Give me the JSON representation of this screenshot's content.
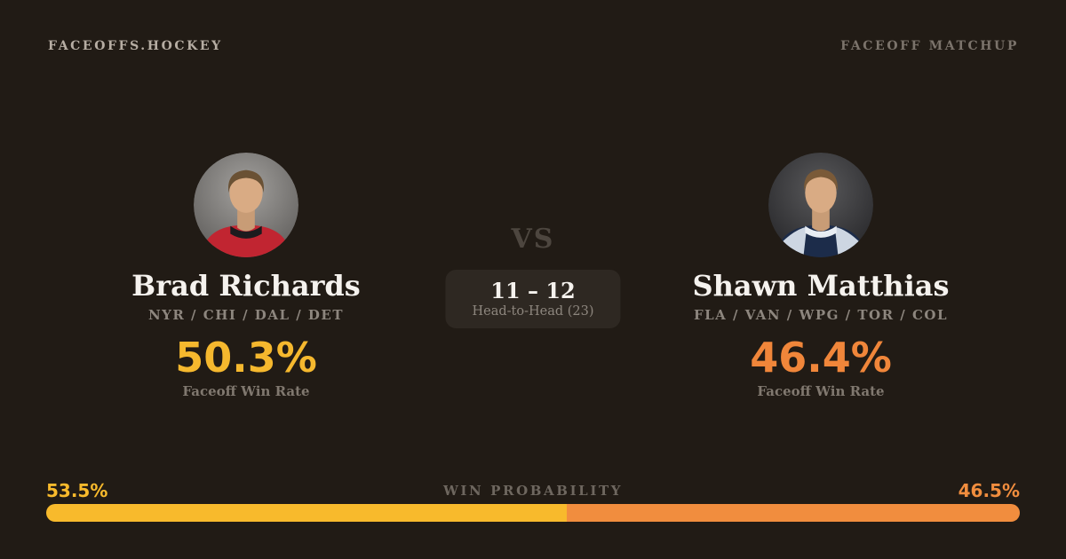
{
  "header": {
    "brand": "FACEOFFS.HOCKEY",
    "page_label": "FACEOFF MATCHUP"
  },
  "players": {
    "left": {
      "name": "Brad Richards",
      "teams": "NYR / CHI / DAL / DET",
      "win_rate": "50.3%",
      "win_rate_label": "Faceoff Win Rate",
      "accent_color": "#f5b82e",
      "avatar": "brad-richards-headshot-red-jersey"
    },
    "right": {
      "name": "Shawn Matthias",
      "teams": "FLA / VAN / WPG / TOR / COL",
      "win_rate": "46.4%",
      "win_rate_label": "Faceoff Win Rate",
      "accent_color": "#f0863a",
      "avatar": "shawn-matthias-headshot-navy-jersey"
    }
  },
  "center": {
    "vs_label": "VS",
    "head_to_head_score": "11 – 12",
    "head_to_head_label": "Head-to-Head (23)"
  },
  "win_probability": {
    "label": "WIN PROBABILITY",
    "left_value": "53.5%",
    "right_value": "46.5%",
    "left_percent": 53.5,
    "right_percent": 46.5,
    "left_color": "#f8ba2c",
    "right_color": "#f18d3e"
  }
}
